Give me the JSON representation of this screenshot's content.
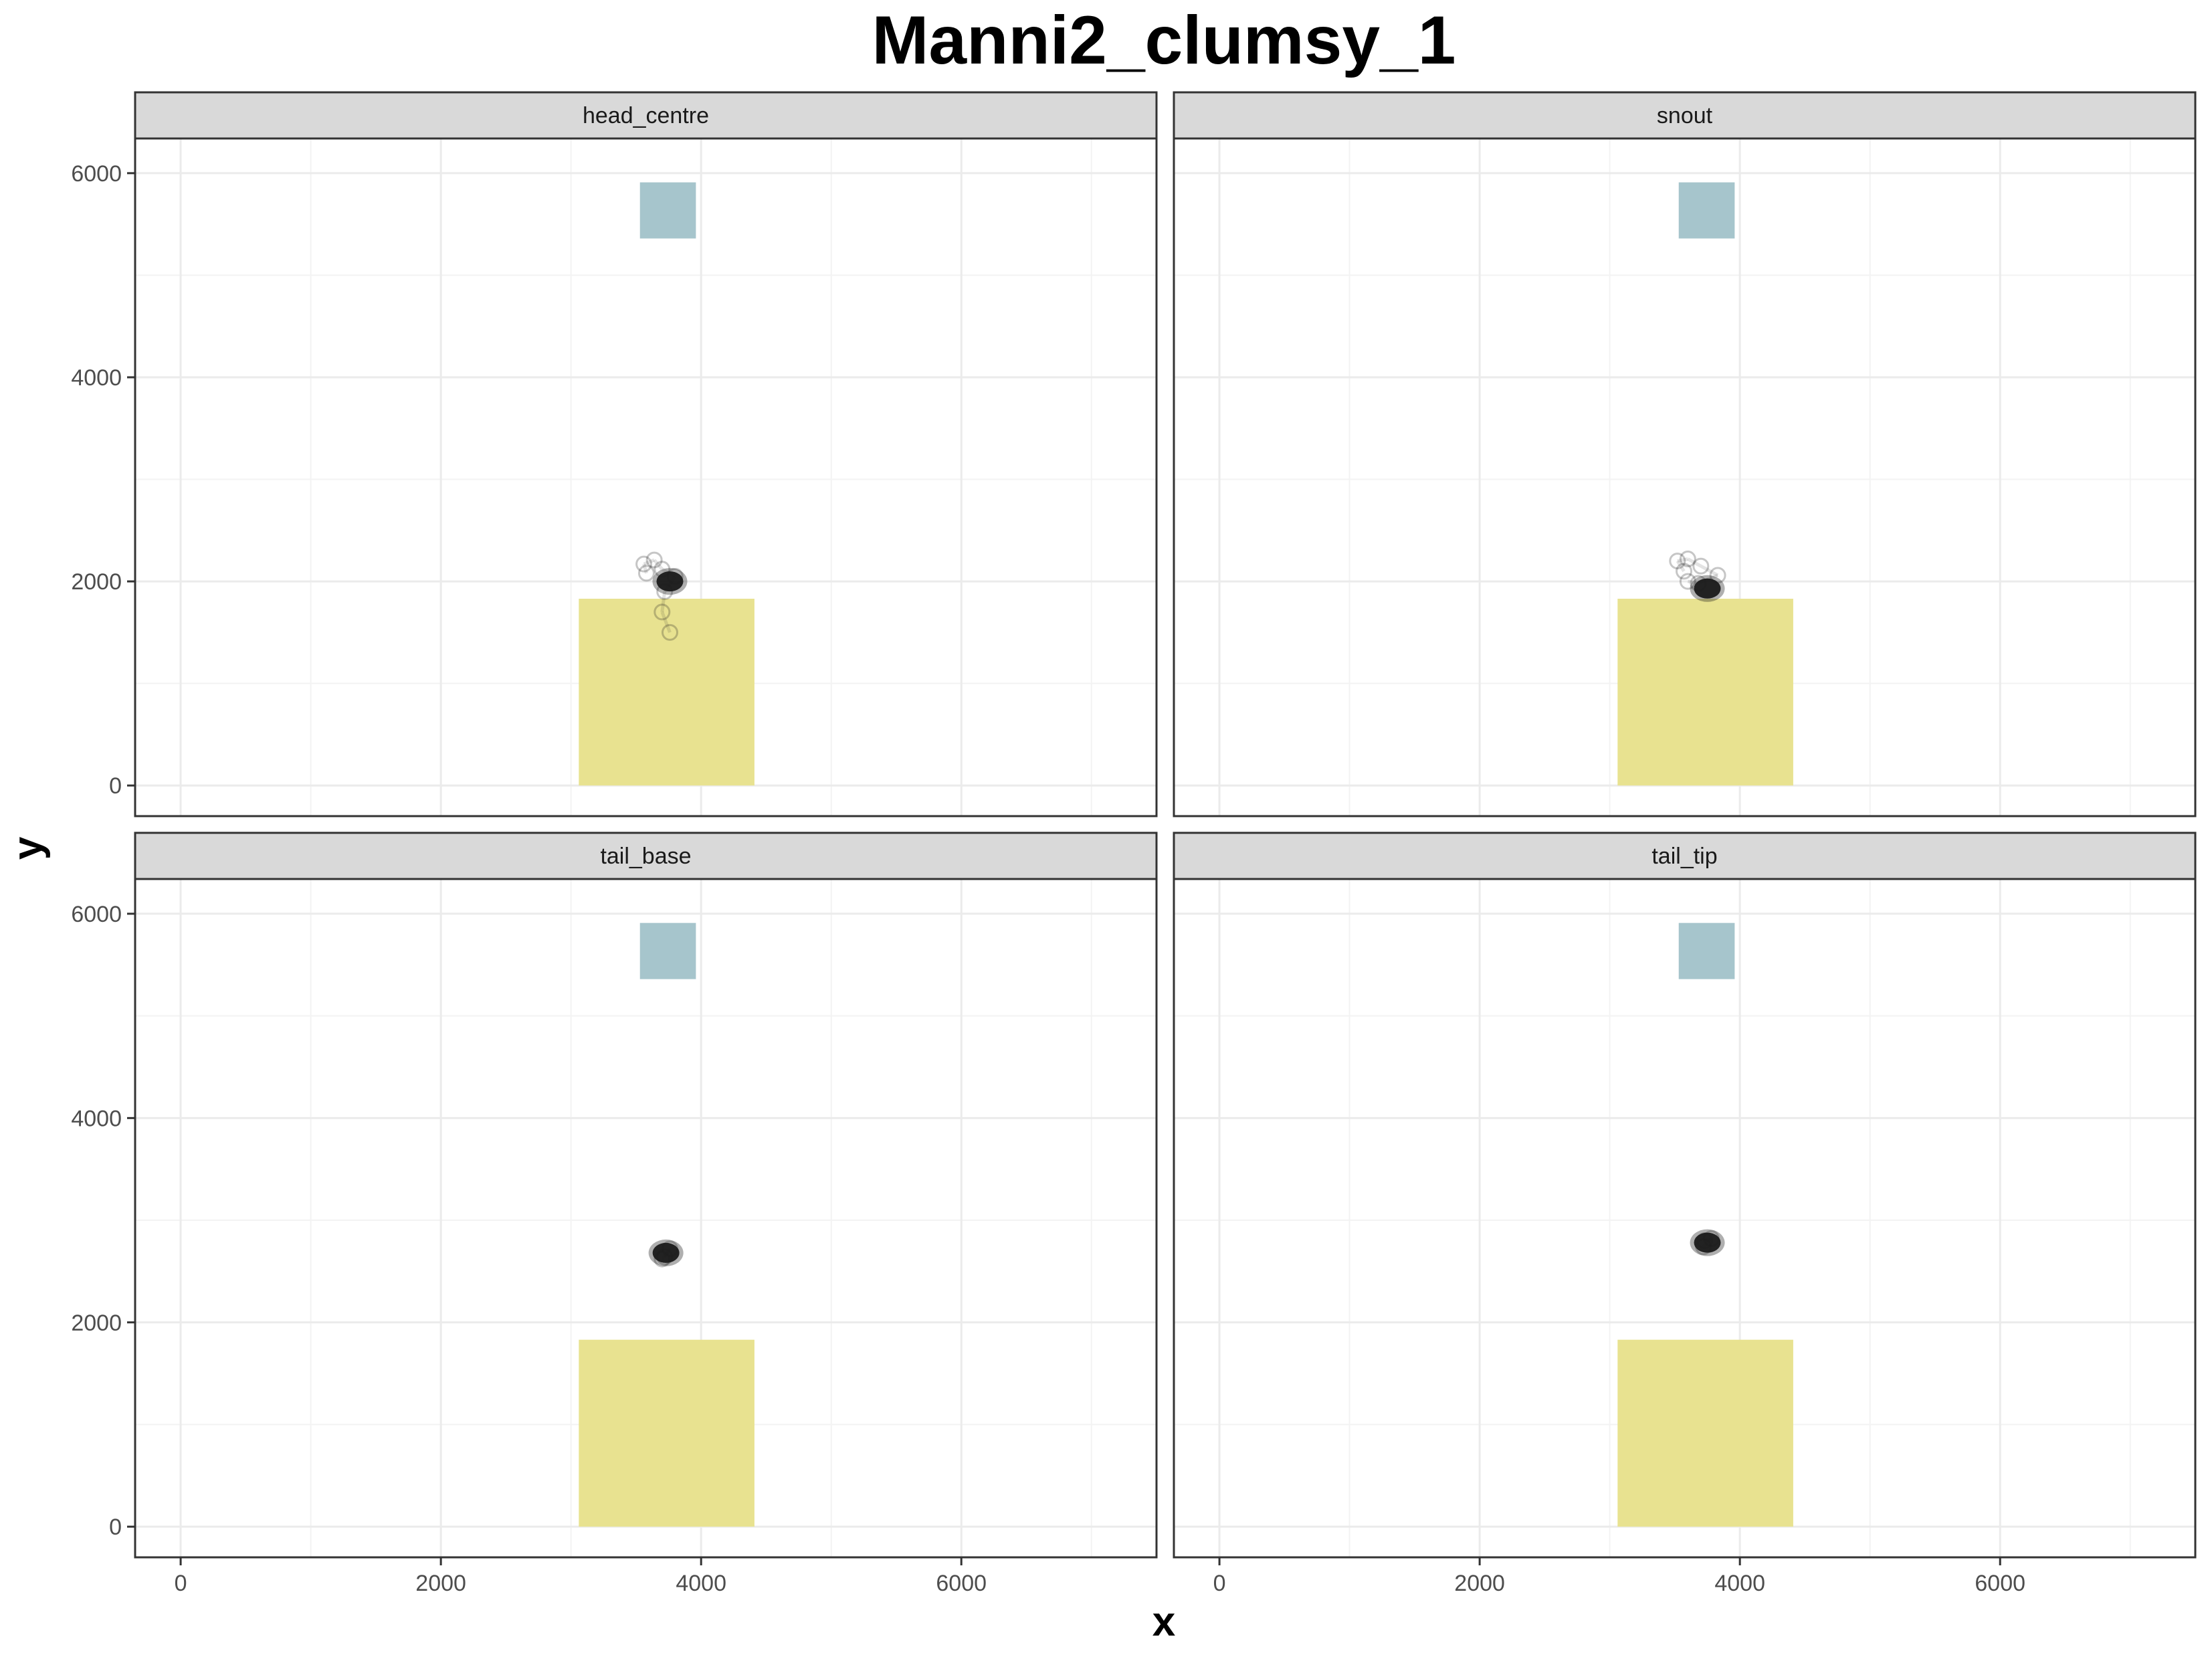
{
  "chart_data": {
    "type": "scatter",
    "title": "Manni2_clumsy_1",
    "xlabel": "x",
    "ylabel": "y",
    "xlim": [
      -350,
      7500
    ],
    "ylim": [
      -300,
      6340
    ],
    "x_ticks": [
      0,
      2000,
      4000,
      6000
    ],
    "y_ticks": [
      0,
      2000,
      4000,
      6000
    ],
    "grid": true,
    "facet_layout": "2x2",
    "colors": {
      "zone_top": "#a6c5cc",
      "zone_bottom": "#e8e290",
      "points": "#1a1a1a",
      "strip": "#d9d9d9",
      "grid": "#ebebeb"
    },
    "zones": {
      "top": {
        "x": [
          3530,
          3960
        ],
        "y": [
          5360,
          5910
        ]
      },
      "bottom": {
        "x": [
          3060,
          4410
        ],
        "y": [
          0,
          1830
        ]
      }
    },
    "panels": [
      {
        "label": "head_centre",
        "cluster": {
          "x": 3760,
          "y": 2000
        },
        "trail": [
          [
            3580,
            2080
          ],
          [
            3560,
            2170
          ],
          [
            3640,
            2210
          ],
          [
            3700,
            2120
          ],
          [
            3800,
            2050
          ],
          [
            3720,
            1900
          ],
          [
            3700,
            1700
          ],
          [
            3760,
            1500
          ]
        ]
      },
      {
        "label": "snout",
        "cluster": {
          "x": 3750,
          "y": 1930
        },
        "trail": [
          [
            3570,
            2100
          ],
          [
            3520,
            2200
          ],
          [
            3600,
            2220
          ],
          [
            3700,
            2150
          ],
          [
            3830,
            2060
          ],
          [
            3680,
            1980
          ],
          [
            3600,
            2000
          ]
        ]
      },
      {
        "label": "tail_base",
        "cluster": {
          "x": 3730,
          "y": 2680
        },
        "trail": [
          [
            3700,
            2620
          ],
          [
            3760,
            2720
          ],
          [
            3720,
            2640
          ]
        ]
      },
      {
        "label": "tail_tip",
        "cluster": {
          "x": 3750,
          "y": 2780
        },
        "trail": [
          [
            3720,
            2740
          ],
          [
            3780,
            2820
          ],
          [
            3730,
            2800
          ]
        ]
      }
    ]
  }
}
